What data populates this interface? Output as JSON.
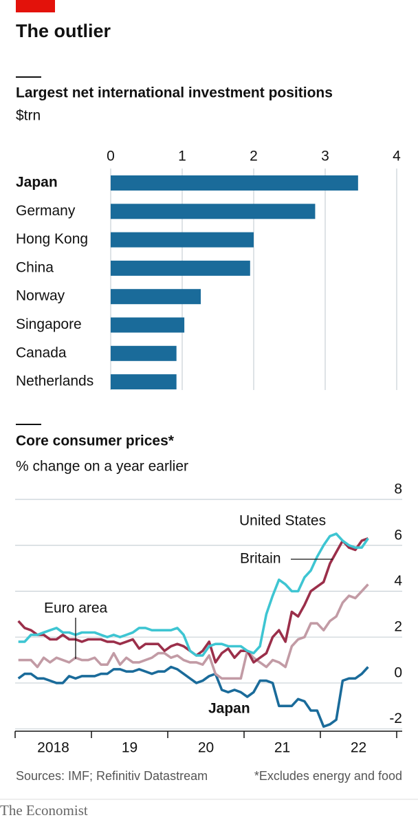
{
  "title": "The outlier",
  "source": "Sources: IMF; Refinitiv Datastream",
  "footnote": "*Excludes energy and food",
  "brand": "The Economist",
  "chart_data": [
    {
      "type": "hbar",
      "title": "Largest net international investment positions",
      "subtitle": "$trn",
      "categories": [
        "Japan",
        "Germany",
        "Hong Kong",
        "China",
        "Norway",
        "Singapore",
        "Canada",
        "Netherlands"
      ],
      "values": [
        3.46,
        2.86,
        2.0,
        1.95,
        1.26,
        1.03,
        0.92,
        0.92
      ],
      "color": "#1a6b9a",
      "xlim": [
        0,
        4
      ],
      "xticks": [
        0,
        1,
        2,
        3,
        4
      ],
      "grid": true
    },
    {
      "type": "line",
      "title": "Core consumer prices*",
      "subtitle": "% change on a year earlier",
      "x": [
        2018.042,
        2018.125,
        2018.208,
        2018.292,
        2018.375,
        2018.458,
        2018.542,
        2018.625,
        2018.708,
        2018.792,
        2018.875,
        2018.958,
        2019.042,
        2019.125,
        2019.208,
        2019.292,
        2019.375,
        2019.458,
        2019.542,
        2019.625,
        2019.708,
        2019.792,
        2019.875,
        2019.958,
        2020.042,
        2020.125,
        2020.208,
        2020.292,
        2020.375,
        2020.458,
        2020.542,
        2020.625,
        2020.708,
        2020.792,
        2020.875,
        2020.958,
        2021.042,
        2021.125,
        2021.208,
        2021.292,
        2021.375,
        2021.458,
        2021.542,
        2021.625,
        2021.708,
        2021.792,
        2021.875,
        2021.958,
        2022.042,
        2022.125,
        2022.208,
        2022.292,
        2022.375,
        2022.458,
        2022.542,
        2022.625
      ],
      "series": [
        {
          "name": "United States",
          "color": "#3ec5d2",
          "values": [
            1.8,
            1.8,
            2.1,
            2.1,
            2.2,
            2.3,
            2.4,
            2.2,
            2.2,
            2.1,
            2.2,
            2.2,
            2.2,
            2.1,
            2.0,
            2.1,
            2.0,
            2.1,
            2.2,
            2.4,
            2.4,
            2.3,
            2.3,
            2.3,
            2.3,
            2.4,
            2.1,
            1.4,
            1.2,
            1.2,
            1.6,
            1.7,
            1.7,
            1.6,
            1.6,
            1.6,
            1.4,
            1.3,
            1.6,
            3.0,
            3.8,
            4.5,
            4.3,
            4.0,
            4.0,
            4.6,
            4.9,
            5.5,
            6.0,
            6.4,
            6.5,
            6.2,
            6.0,
            5.9,
            5.9,
            6.3
          ]
        },
        {
          "name": "Britain",
          "color": "#9b2f4a",
          "values": [
            2.7,
            2.4,
            2.3,
            2.1,
            2.1,
            1.9,
            1.9,
            2.1,
            1.9,
            1.9,
            1.8,
            1.9,
            1.9,
            1.9,
            1.8,
            1.8,
            1.7,
            1.8,
            1.9,
            1.5,
            1.7,
            1.7,
            1.7,
            1.4,
            1.6,
            1.7,
            1.6,
            1.4,
            1.2,
            1.4,
            1.8,
            0.9,
            1.3,
            1.5,
            1.1,
            1.4,
            1.4,
            0.9,
            1.1,
            1.3,
            2.0,
            2.3,
            1.8,
            3.1,
            2.9,
            3.4,
            4.0,
            4.2,
            4.4,
            5.2,
            5.7,
            6.2,
            5.9,
            5.8,
            6.2,
            6.3
          ]
        },
        {
          "name": "Euro area",
          "color": "#c29ba5",
          "values": [
            1.0,
            1.0,
            1.0,
            0.7,
            1.1,
            0.9,
            1.1,
            1.0,
            0.9,
            1.1,
            1.0,
            1.0,
            1.1,
            0.8,
            0.8,
            1.3,
            0.8,
            1.1,
            0.9,
            0.9,
            1.0,
            1.1,
            1.3,
            1.3,
            1.1,
            1.2,
            1.0,
            0.9,
            0.9,
            0.8,
            1.2,
            0.4,
            0.2,
            0.2,
            0.2,
            0.2,
            1.4,
            1.1,
            0.9,
            0.7,
            1.0,
            0.9,
            0.7,
            1.6,
            1.9,
            2.0,
            2.6,
            2.6,
            2.3,
            2.7,
            2.9,
            3.5,
            3.8,
            3.7,
            4.0,
            4.3
          ]
        },
        {
          "name": "Japan",
          "color": "#1a6b9a",
          "values": [
            0.2,
            0.4,
            0.4,
            0.2,
            0.2,
            0.1,
            0.0,
            0.0,
            0.3,
            0.2,
            0.3,
            0.3,
            0.3,
            0.4,
            0.4,
            0.6,
            0.6,
            0.5,
            0.5,
            0.6,
            0.5,
            0.4,
            0.5,
            0.5,
            0.7,
            0.6,
            0.4,
            0.2,
            0.0,
            0.1,
            0.3,
            0.4,
            -0.3,
            -0.4,
            -0.3,
            -0.4,
            -0.6,
            -0.4,
            0.1,
            0.1,
            0.0,
            -1.0,
            -1.0,
            -1.0,
            -0.7,
            -0.8,
            -1.2,
            -1.2,
            -1.9,
            -1.8,
            -1.6,
            0.1,
            0.2,
            0.2,
            0.4,
            0.7
          ]
        }
      ],
      "xlim": [
        2018,
        2023
      ],
      "xticks": [
        2018,
        {
          "value": 2019,
          "label": "19"
        },
        {
          "value": 2020,
          "label": "20"
        },
        {
          "value": 2021,
          "label": "21"
        },
        {
          "value": 2022,
          "label": "22"
        }
      ],
      "ylim": [
        -2.1,
        8
      ],
      "yticks": [
        -2,
        0,
        2,
        4,
        6,
        8
      ],
      "grid": true
    }
  ]
}
